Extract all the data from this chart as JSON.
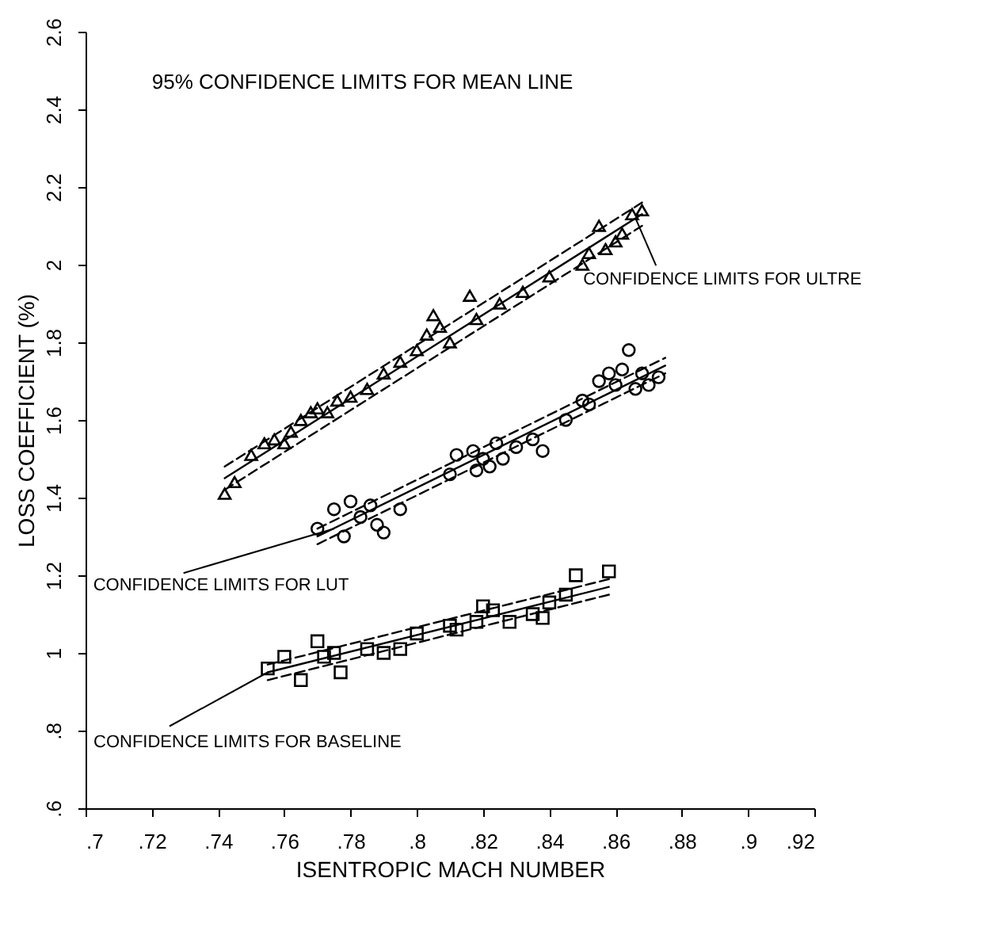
{
  "chart_data": {
    "type": "scatter",
    "xlabel": "ISENTROPIC MACH NUMBER",
    "ylabel": "LOSS COEFFICIENT (%)",
    "xlim": [
      0.7,
      0.92
    ],
    "ylim": [
      0.6,
      2.6
    ],
    "xticks": [
      {
        "value": 0.7,
        "label": ".7"
      },
      {
        "value": 0.72,
        "label": ".72"
      },
      {
        "value": 0.74,
        "label": ".74"
      },
      {
        "value": 0.76,
        "label": ".76"
      },
      {
        "value": 0.78,
        "label": ".78"
      },
      {
        "value": 0.8,
        "label": ".8"
      },
      {
        "value": 0.82,
        "label": ".82"
      },
      {
        "value": 0.84,
        "label": ".84"
      },
      {
        "value": 0.86,
        "label": ".86"
      },
      {
        "value": 0.88,
        "label": ".88"
      },
      {
        "value": 0.9,
        "label": ".9"
      },
      {
        "value": 0.92,
        "label": ".92"
      }
    ],
    "yticks": [
      {
        "value": 0.6,
        "label": ".6"
      },
      {
        "value": 0.8,
        "label": ".8"
      },
      1,
      1.2,
      1.4,
      1.6,
      1.8,
      2,
      2.2,
      2.4,
      2.6
    ],
    "annotations": [
      "95% CONFIDENCE LIMITS FOR MEAN LINE",
      {
        "text": "CONFIDENCE LIMITS FOR ULTRE",
        "x": 0.866,
        "y": 2.12
      },
      {
        "text": "CONFIDENCE LIMITS FOR LUT",
        "x": 0.775,
        "y": 1.32
      },
      {
        "text": "CONFIDENCE LIMITS FOR BASELINE",
        "x": 0.755,
        "y": 0.95
      }
    ],
    "series": [
      {
        "type": "scatter",
        "marker": "triangle",
        "color": "#000000",
        "x": [
          0.742,
          0.745,
          0.75,
          0.754,
          0.757,
          0.76,
          0.762,
          0.765,
          0.768,
          0.77,
          0.773,
          0.776,
          0.78,
          0.785,
          0.79,
          0.795,
          0.8,
          0.803,
          0.805,
          0.807,
          0.81,
          0.816,
          0.818,
          0.825,
          0.832,
          0.84,
          0.85,
          0.852,
          0.855,
          0.857,
          0.86,
          0.862,
          0.865,
          0.868
        ],
        "values": [
          1.41,
          1.44,
          1.51,
          1.54,
          1.55,
          1.54,
          1.57,
          1.6,
          1.62,
          1.63,
          1.62,
          1.65,
          1.66,
          1.68,
          1.72,
          1.75,
          1.78,
          1.82,
          1.87,
          1.84,
          1.8,
          1.92,
          1.86,
          1.9,
          1.93,
          1.97,
          2.0,
          2.03,
          2.1,
          2.04,
          2.06,
          2.08,
          2.13,
          2.14
        ]
      },
      {
        "type": "scatter",
        "marker": "circle",
        "color": "#000000",
        "x": [
          0.77,
          0.775,
          0.778,
          0.78,
          0.783,
          0.786,
          0.788,
          0.79,
          0.795,
          0.81,
          0.812,
          0.817,
          0.818,
          0.82,
          0.822,
          0.824,
          0.826,
          0.83,
          0.835,
          0.838,
          0.845,
          0.85,
          0.852,
          0.855,
          0.858,
          0.86,
          0.862,
          0.864,
          0.866,
          0.868,
          0.87,
          0.873
        ],
        "values": [
          1.32,
          1.37,
          1.3,
          1.39,
          1.35,
          1.38,
          1.33,
          1.31,
          1.37,
          1.46,
          1.51,
          1.52,
          1.47,
          1.5,
          1.48,
          1.54,
          1.5,
          1.53,
          1.55,
          1.52,
          1.6,
          1.65,
          1.64,
          1.7,
          1.72,
          1.69,
          1.73,
          1.78,
          1.68,
          1.72,
          1.69,
          1.71
        ]
      },
      {
        "type": "scatter",
        "marker": "square",
        "color": "#000000",
        "x": [
          0.755,
          0.76,
          0.765,
          0.77,
          0.772,
          0.775,
          0.777,
          0.785,
          0.79,
          0.795,
          0.8,
          0.81,
          0.812,
          0.818,
          0.82,
          0.823,
          0.828,
          0.835,
          0.838,
          0.84,
          0.845,
          0.848,
          0.858
        ],
        "values": [
          0.96,
          0.99,
          0.93,
          1.03,
          0.99,
          1.0,
          0.95,
          1.01,
          1.0,
          1.01,
          1.05,
          1.07,
          1.06,
          1.08,
          1.12,
          1.11,
          1.08,
          1.1,
          1.09,
          1.13,
          1.15,
          1.2,
          1.21
        ]
      },
      {
        "type": "line",
        "line_style": "solid",
        "color": "#000000",
        "x": [
          0.742,
          0.868
        ],
        "values": [
          1.45,
          2.13
        ]
      },
      {
        "type": "line",
        "line_style": "dashed",
        "color": "#000000",
        "x": [
          0.742,
          0.868
        ],
        "values": [
          1.48,
          2.16
        ]
      },
      {
        "type": "line",
        "line_style": "dashed",
        "color": "#000000",
        "x": [
          0.742,
          0.868
        ],
        "values": [
          1.42,
          2.1
        ]
      },
      {
        "type": "line",
        "line_style": "solid",
        "color": "#000000",
        "x": [
          0.77,
          0.875
        ],
        "values": [
          1.3,
          1.74
        ]
      },
      {
        "type": "line",
        "line_style": "dashed",
        "color": "#000000",
        "x": [
          0.77,
          0.875
        ],
        "values": [
          1.32,
          1.76
        ]
      },
      {
        "type": "line",
        "line_style": "dashed",
        "color": "#000000",
        "x": [
          0.77,
          0.875
        ],
        "values": [
          1.28,
          1.72
        ]
      },
      {
        "type": "line",
        "line_style": "solid",
        "color": "#000000",
        "x": [
          0.755,
          0.858
        ],
        "values": [
          0.95,
          1.17
        ]
      },
      {
        "type": "line",
        "line_style": "dashed",
        "color": "#000000",
        "x": [
          0.755,
          0.858
        ],
        "values": [
          0.97,
          1.19
        ]
      },
      {
        "type": "line",
        "line_style": "dashed",
        "color": "#000000",
        "x": [
          0.755,
          0.858
        ],
        "values": [
          0.93,
          1.15
        ]
      }
    ]
  }
}
